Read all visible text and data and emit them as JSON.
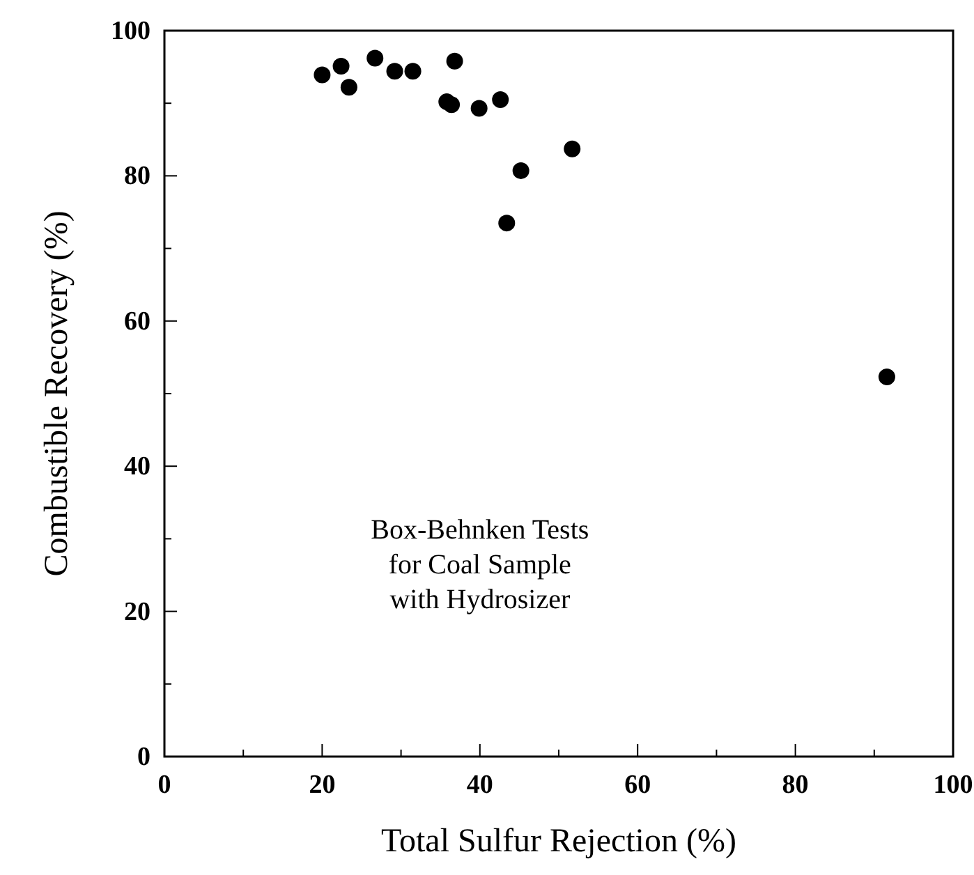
{
  "chart_data": {
    "type": "scatter",
    "xlabel": "Total Sulfur Rejection (%)",
    "ylabel": "Combustible Recovery (%)",
    "annotations": [
      "Box-Behnken Tests",
      "for Coal Sample",
      "with Hydrosizer"
    ],
    "x": [
      20.0,
      22.4,
      23.4,
      26.7,
      29.2,
      31.5,
      36.8,
      35.8,
      36.4,
      39.9,
      42.6,
      51.7,
      45.2,
      43.4,
      91.6
    ],
    "series": [
      {
        "color": "#000000",
        "values": [
          93.9,
          95.1,
          92.2,
          96.2,
          94.4,
          94.4,
          95.8,
          90.2,
          89.8,
          89.3,
          90.5,
          83.7,
          80.7,
          73.5,
          52.3
        ]
      }
    ],
    "xlim": [
      0,
      100
    ],
    "ylim": [
      0,
      100
    ],
    "xticks": [
      0,
      {
        "value": 10,
        "label": null
      },
      20,
      {
        "value": 30,
        "label": null
      },
      40,
      {
        "value": 50,
        "label": null
      },
      60,
      {
        "value": 70,
        "label": null
      },
      80,
      {
        "value": 90,
        "label": null
      },
      100
    ],
    "yticks": [
      0,
      {
        "value": 10,
        "label": null
      },
      20,
      {
        "value": 30,
        "label": null
      },
      40,
      {
        "value": 50,
        "label": null
      },
      60,
      {
        "value": 70,
        "label": null
      },
      80,
      {
        "value": 90,
        "label": null
      },
      100
    ],
    "marker": "circle",
    "grid": false
  }
}
